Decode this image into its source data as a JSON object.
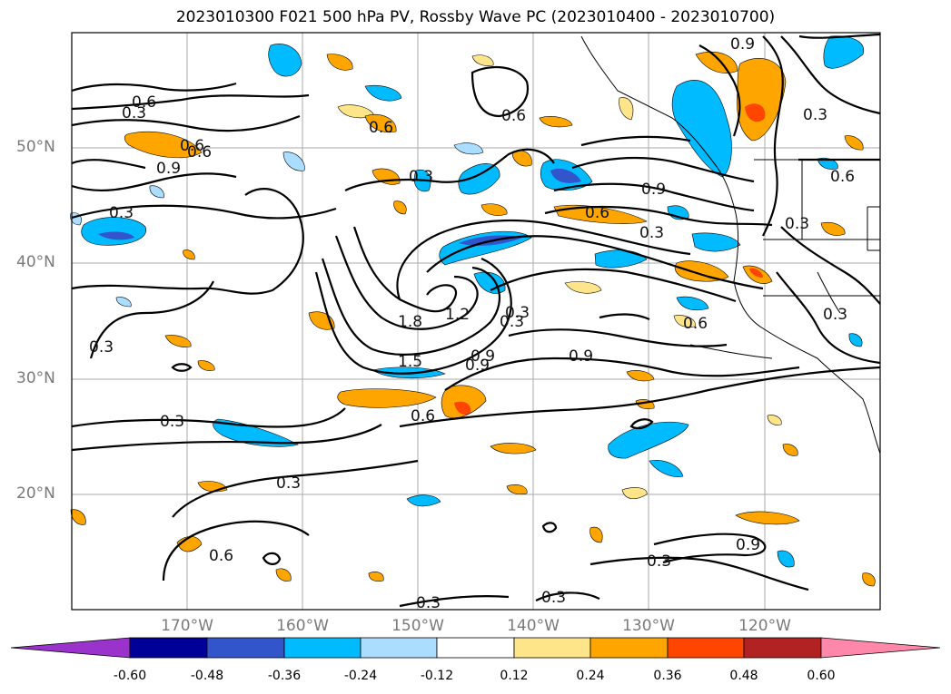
{
  "title": "2023010300 F021 500 hPa PV, Rossby Wave PC (2023010400 - 2023010700)",
  "lat_labels": [
    "50°N",
    "40°N",
    "30°N",
    "20°N"
  ],
  "lon_labels": [
    "170°W",
    "160°W",
    "150°W",
    "140°W",
    "130°W",
    "120°W"
  ],
  "colorbar": {
    "ticks": [
      "-0.60",
      "-0.48",
      "-0.36",
      "-0.24",
      "-0.12",
      "0.12",
      "0.24",
      "0.36",
      "0.48",
      "0.60"
    ],
    "colors": {
      "extend_low": "#9933cc",
      "c1": "#000099",
      "c2": "#3355cc",
      "c3": "#00bbff",
      "c4": "#aaddff",
      "c5": "#ffffff",
      "c6": "#ffe58a",
      "c7": "#ffa500",
      "c8": "#ff4500",
      "c9": "#b22222",
      "extend_high": "#ff88aa"
    }
  },
  "contour_labels": [
    "0.6",
    "0.3",
    "0.6",
    "0.9",
    "0.6",
    "0.3",
    "0.3",
    "0.6",
    "0.9",
    "0.6",
    "0.3",
    "0.9",
    "0.6",
    "0.6",
    "0.3",
    "0.3",
    "1.8",
    "1.2",
    "0.3",
    "0.9",
    "1.5",
    "0.6",
    "0.9",
    "0.6",
    "0.3",
    "0.3",
    "0.3",
    "0.6",
    "0.3",
    "0.3",
    "0.3",
    "0.9",
    "0.3",
    "0.9",
    "0.3"
  ]
}
